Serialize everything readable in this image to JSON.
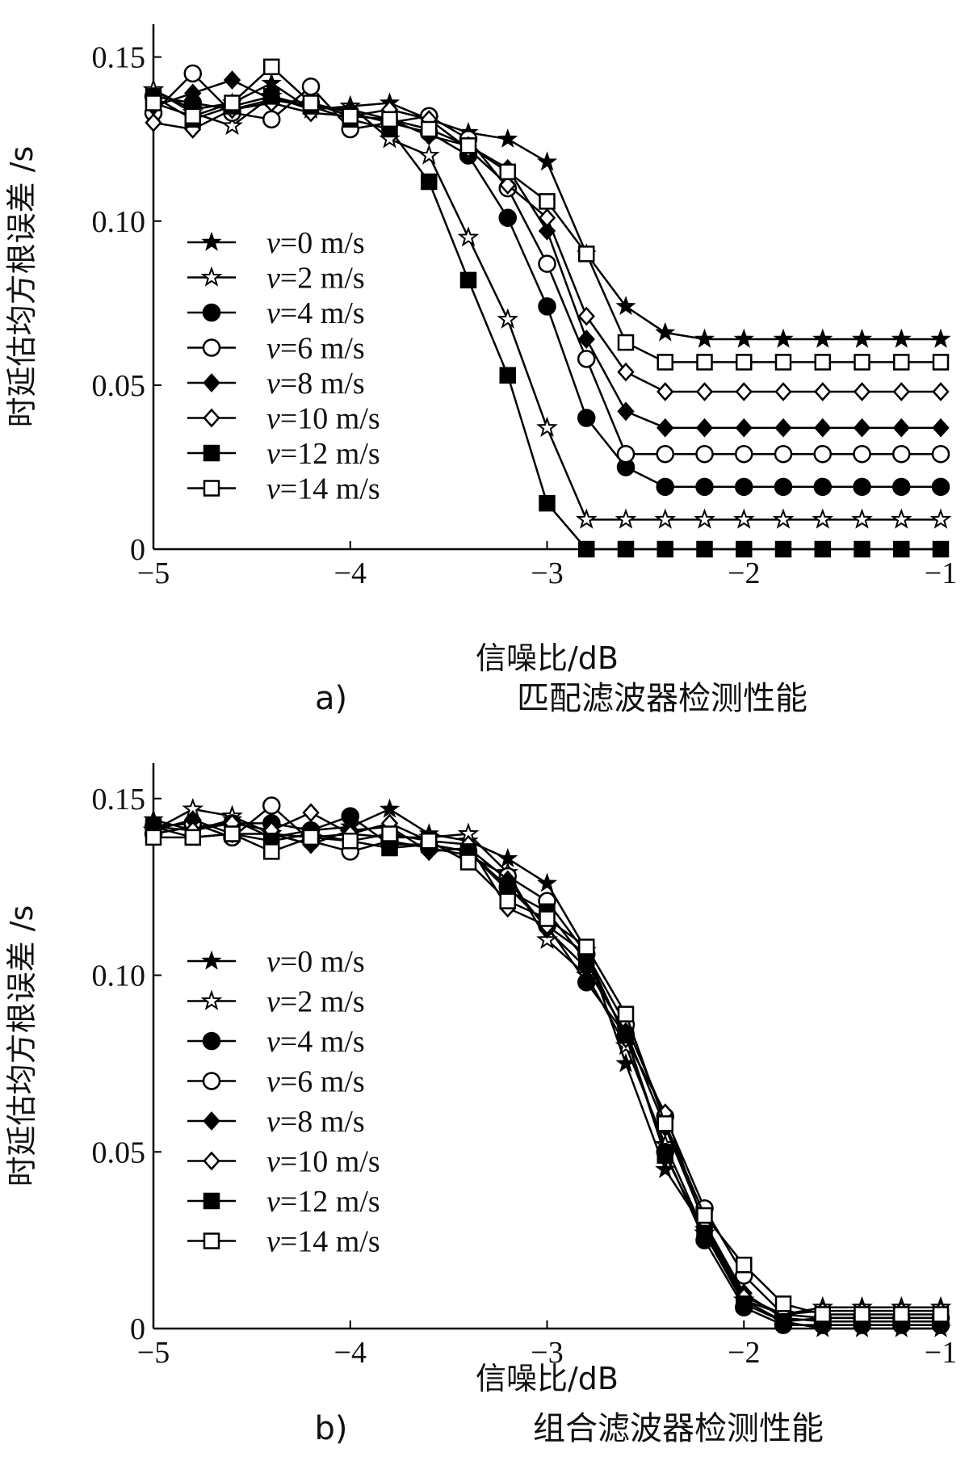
{
  "figure": {
    "background": "#ffffff",
    "line_color": "#000000",
    "marker_color": "#000000"
  },
  "chart_data": [
    {
      "type": "line",
      "caption_label": "a)",
      "caption_text": "匹配滤波器检测性能",
      "xlabel": "信噪比/dB",
      "ylabel": "时延估均方根误差 /s",
      "xlim": [
        -5,
        -1
      ],
      "ylim": [
        0,
        0.16
      ],
      "xticks": [
        -5,
        -4,
        -3,
        -2,
        -1
      ],
      "xtick_labels": [
        "−5",
        "−4",
        "−3",
        "−2",
        "−1"
      ],
      "yticks": [
        0,
        0.05,
        0.1,
        0.15
      ],
      "ytick_labels": [
        "0",
        "0.05",
        "0.10",
        "0.15"
      ],
      "legend": {
        "placement": "center-left"
      },
      "x": [
        -5.0,
        -4.8,
        -4.6,
        -4.4,
        -4.2,
        -4.0,
        -3.8,
        -3.6,
        -3.4,
        -3.2,
        -3.0,
        -2.8,
        -2.6,
        -2.4,
        -2.2,
        -2.0,
        -1.8,
        -1.6,
        -1.4,
        -1.2,
        -1.0
      ],
      "series": [
        {
          "name": "v=0 m/s",
          "v_symbol": "v",
          "v_rest": "=0 m/s",
          "marker": "star-filled",
          "values": [
            0.14,
            0.134,
            0.136,
            0.142,
            0.134,
            0.135,
            0.136,
            0.131,
            0.127,
            0.125,
            0.118,
            0.09,
            0.074,
            0.066,
            0.064,
            0.064,
            0.064,
            0.064,
            0.064,
            0.064,
            0.064
          ]
        },
        {
          "name": "v=2 m/s",
          "v_symbol": "v",
          "v_rest": "=2 m/s",
          "marker": "star-open",
          "values": [
            0.14,
            0.133,
            0.129,
            0.138,
            0.134,
            0.135,
            0.125,
            0.12,
            0.095,
            0.07,
            0.037,
            0.009,
            0.009,
            0.009,
            0.009,
            0.009,
            0.009,
            0.009,
            0.009,
            0.009,
            0.009
          ]
        },
        {
          "name": "v=4 m/s",
          "v_symbol": "v",
          "v_rest": "=4 m/s",
          "marker": "circle-filled",
          "values": [
            0.138,
            0.136,
            0.134,
            0.137,
            0.136,
            0.133,
            0.13,
            0.127,
            0.12,
            0.101,
            0.074,
            0.04,
            0.025,
            0.019,
            0.019,
            0.019,
            0.019,
            0.019,
            0.019,
            0.019,
            0.019
          ]
        },
        {
          "name": "v=6 m/s",
          "v_symbol": "v",
          "v_rest": "=6 m/s",
          "marker": "circle-open",
          "values": [
            0.133,
            0.145,
            0.133,
            0.131,
            0.141,
            0.128,
            0.13,
            0.132,
            0.125,
            0.11,
            0.087,
            0.058,
            0.029,
            0.029,
            0.029,
            0.029,
            0.029,
            0.029,
            0.029,
            0.029,
            0.029
          ]
        },
        {
          "name": "v=8 m/s",
          "v_symbol": "v",
          "v_rest": "=8 m/s",
          "marker": "diamond-filled",
          "values": [
            0.135,
            0.139,
            0.143,
            0.137,
            0.135,
            0.134,
            0.131,
            0.126,
            0.123,
            0.116,
            0.097,
            0.064,
            0.042,
            0.037,
            0.037,
            0.037,
            0.037,
            0.037,
            0.037,
            0.037,
            0.037
          ]
        },
        {
          "name": "v=10 m/s",
          "v_symbol": "v",
          "v_rest": "=10 m/s",
          "marker": "diamond-open",
          "values": [
            0.13,
            0.128,
            0.134,
            0.136,
            0.133,
            0.132,
            0.134,
            0.131,
            0.122,
            0.111,
            0.101,
            0.071,
            0.054,
            0.048,
            0.048,
            0.048,
            0.048,
            0.048,
            0.048,
            0.048,
            0.048
          ]
        },
        {
          "name": "v=12 m/s",
          "v_symbol": "v",
          "v_rest": "=12 m/s",
          "marker": "square-filled",
          "values": [
            0.138,
            0.131,
            0.135,
            0.138,
            0.135,
            0.131,
            0.128,
            0.112,
            0.082,
            0.053,
            0.014,
            0.0,
            0.0,
            0.0,
            0.0,
            0.0,
            0.0,
            0.0,
            0.0,
            0.0,
            0.0
          ]
        },
        {
          "name": "v=14 m/s",
          "v_symbol": "v",
          "v_rest": "=14 m/s",
          "marker": "square-open",
          "values": [
            0.136,
            0.132,
            0.136,
            0.147,
            0.136,
            0.132,
            0.131,
            0.128,
            0.123,
            0.115,
            0.106,
            0.09,
            0.063,
            0.057,
            0.057,
            0.057,
            0.057,
            0.057,
            0.057,
            0.057,
            0.057
          ]
        }
      ]
    },
    {
      "type": "line",
      "caption_label": "b)",
      "caption_text": "组合滤波器检测性能",
      "xlabel": "信噪比/dB",
      "ylabel": "时延估均方根误差 /s",
      "xlim": [
        -5,
        -1
      ],
      "ylim": [
        0,
        0.16
      ],
      "xticks": [
        -5,
        -4,
        -3,
        -2,
        -1
      ],
      "xtick_labels": [
        "−5",
        "−4",
        "−3",
        "−2",
        "−1"
      ],
      "yticks": [
        0,
        0.05,
        0.1,
        0.15
      ],
      "ytick_labels": [
        "0",
        "0.05",
        "0.10",
        "0.15"
      ],
      "legend": {
        "placement": "center-left"
      },
      "x": [
        -5.0,
        -4.8,
        -4.6,
        -4.4,
        -4.2,
        -4.0,
        -3.8,
        -3.6,
        -3.4,
        -3.2,
        -3.0,
        -2.8,
        -2.6,
        -2.4,
        -2.2,
        -2.0,
        -1.8,
        -1.6,
        -1.4,
        -1.2,
        -1.0
      ],
      "series": [
        {
          "name": "v=0 m/s",
          "v_symbol": "v",
          "v_rest": "=0 m/s",
          "marker": "star-filled",
          "values": [
            0.144,
            0.141,
            0.144,
            0.139,
            0.141,
            0.142,
            0.147,
            0.14,
            0.138,
            0.133,
            0.126,
            0.107,
            0.075,
            0.045,
            0.028,
            0.008,
            0.002,
            0.0,
            0.0,
            0.0,
            0.0
          ]
        },
        {
          "name": "v=2 m/s",
          "v_symbol": "v",
          "v_rest": "=2 m/s",
          "marker": "star-open",
          "values": [
            0.141,
            0.147,
            0.145,
            0.14,
            0.139,
            0.14,
            0.139,
            0.139,
            0.14,
            0.129,
            0.11,
            0.1,
            0.08,
            0.052,
            0.027,
            0.008,
            0.004,
            0.006,
            0.006,
            0.006,
            0.006
          ]
        },
        {
          "name": "v=4 m/s",
          "v_symbol": "v",
          "v_rest": "=4 m/s",
          "marker": "circle-filled",
          "values": [
            0.14,
            0.142,
            0.143,
            0.143,
            0.141,
            0.145,
            0.137,
            0.137,
            0.135,
            0.125,
            0.114,
            0.098,
            0.083,
            0.05,
            0.025,
            0.006,
            0.001,
            0.001,
            0.001,
            0.001,
            0.001
          ]
        },
        {
          "name": "v=6 m/s",
          "v_symbol": "v",
          "v_rest": "=6 m/s",
          "marker": "circle-open",
          "values": [
            0.142,
            0.143,
            0.139,
            0.148,
            0.138,
            0.135,
            0.138,
            0.136,
            0.134,
            0.128,
            0.121,
            0.106,
            0.086,
            0.06,
            0.034,
            0.015,
            0.004,
            0.003,
            0.003,
            0.003,
            0.003
          ]
        },
        {
          "name": "v=8 m/s",
          "v_symbol": "v",
          "v_rest": "=8 m/s",
          "marker": "diamond-filled",
          "values": [
            0.141,
            0.144,
            0.14,
            0.14,
            0.137,
            0.141,
            0.142,
            0.135,
            0.136,
            0.127,
            0.113,
            0.102,
            0.084,
            0.057,
            0.03,
            0.01,
            0.003,
            0.002,
            0.002,
            0.002,
            0.002
          ]
        },
        {
          "name": "v=10 m/s",
          "v_symbol": "v",
          "v_rest": "=10 m/s",
          "marker": "diamond-open",
          "values": [
            0.142,
            0.141,
            0.143,
            0.141,
            0.146,
            0.14,
            0.143,
            0.138,
            0.137,
            0.119,
            0.114,
            0.106,
            0.082,
            0.061,
            0.029,
            0.009,
            0.004,
            0.005,
            0.005,
            0.005,
            0.005
          ]
        },
        {
          "name": "v=12 m/s",
          "v_symbol": "v",
          "v_rest": "=12 m/s",
          "marker": "square-filled",
          "values": [
            0.142,
            0.139,
            0.14,
            0.138,
            0.14,
            0.138,
            0.136,
            0.137,
            0.135,
            0.124,
            0.118,
            0.104,
            0.083,
            0.049,
            0.027,
            0.007,
            0.002,
            0.003,
            0.003,
            0.003,
            0.003
          ]
        },
        {
          "name": "v=14 m/s",
          "v_symbol": "v",
          "v_rest": "=14 m/s",
          "marker": "square-open",
          "values": [
            0.139,
            0.139,
            0.14,
            0.135,
            0.139,
            0.138,
            0.14,
            0.138,
            0.132,
            0.121,
            0.116,
            0.108,
            0.089,
            0.058,
            0.032,
            0.018,
            0.007,
            0.004,
            0.004,
            0.004,
            0.004
          ]
        }
      ]
    }
  ]
}
